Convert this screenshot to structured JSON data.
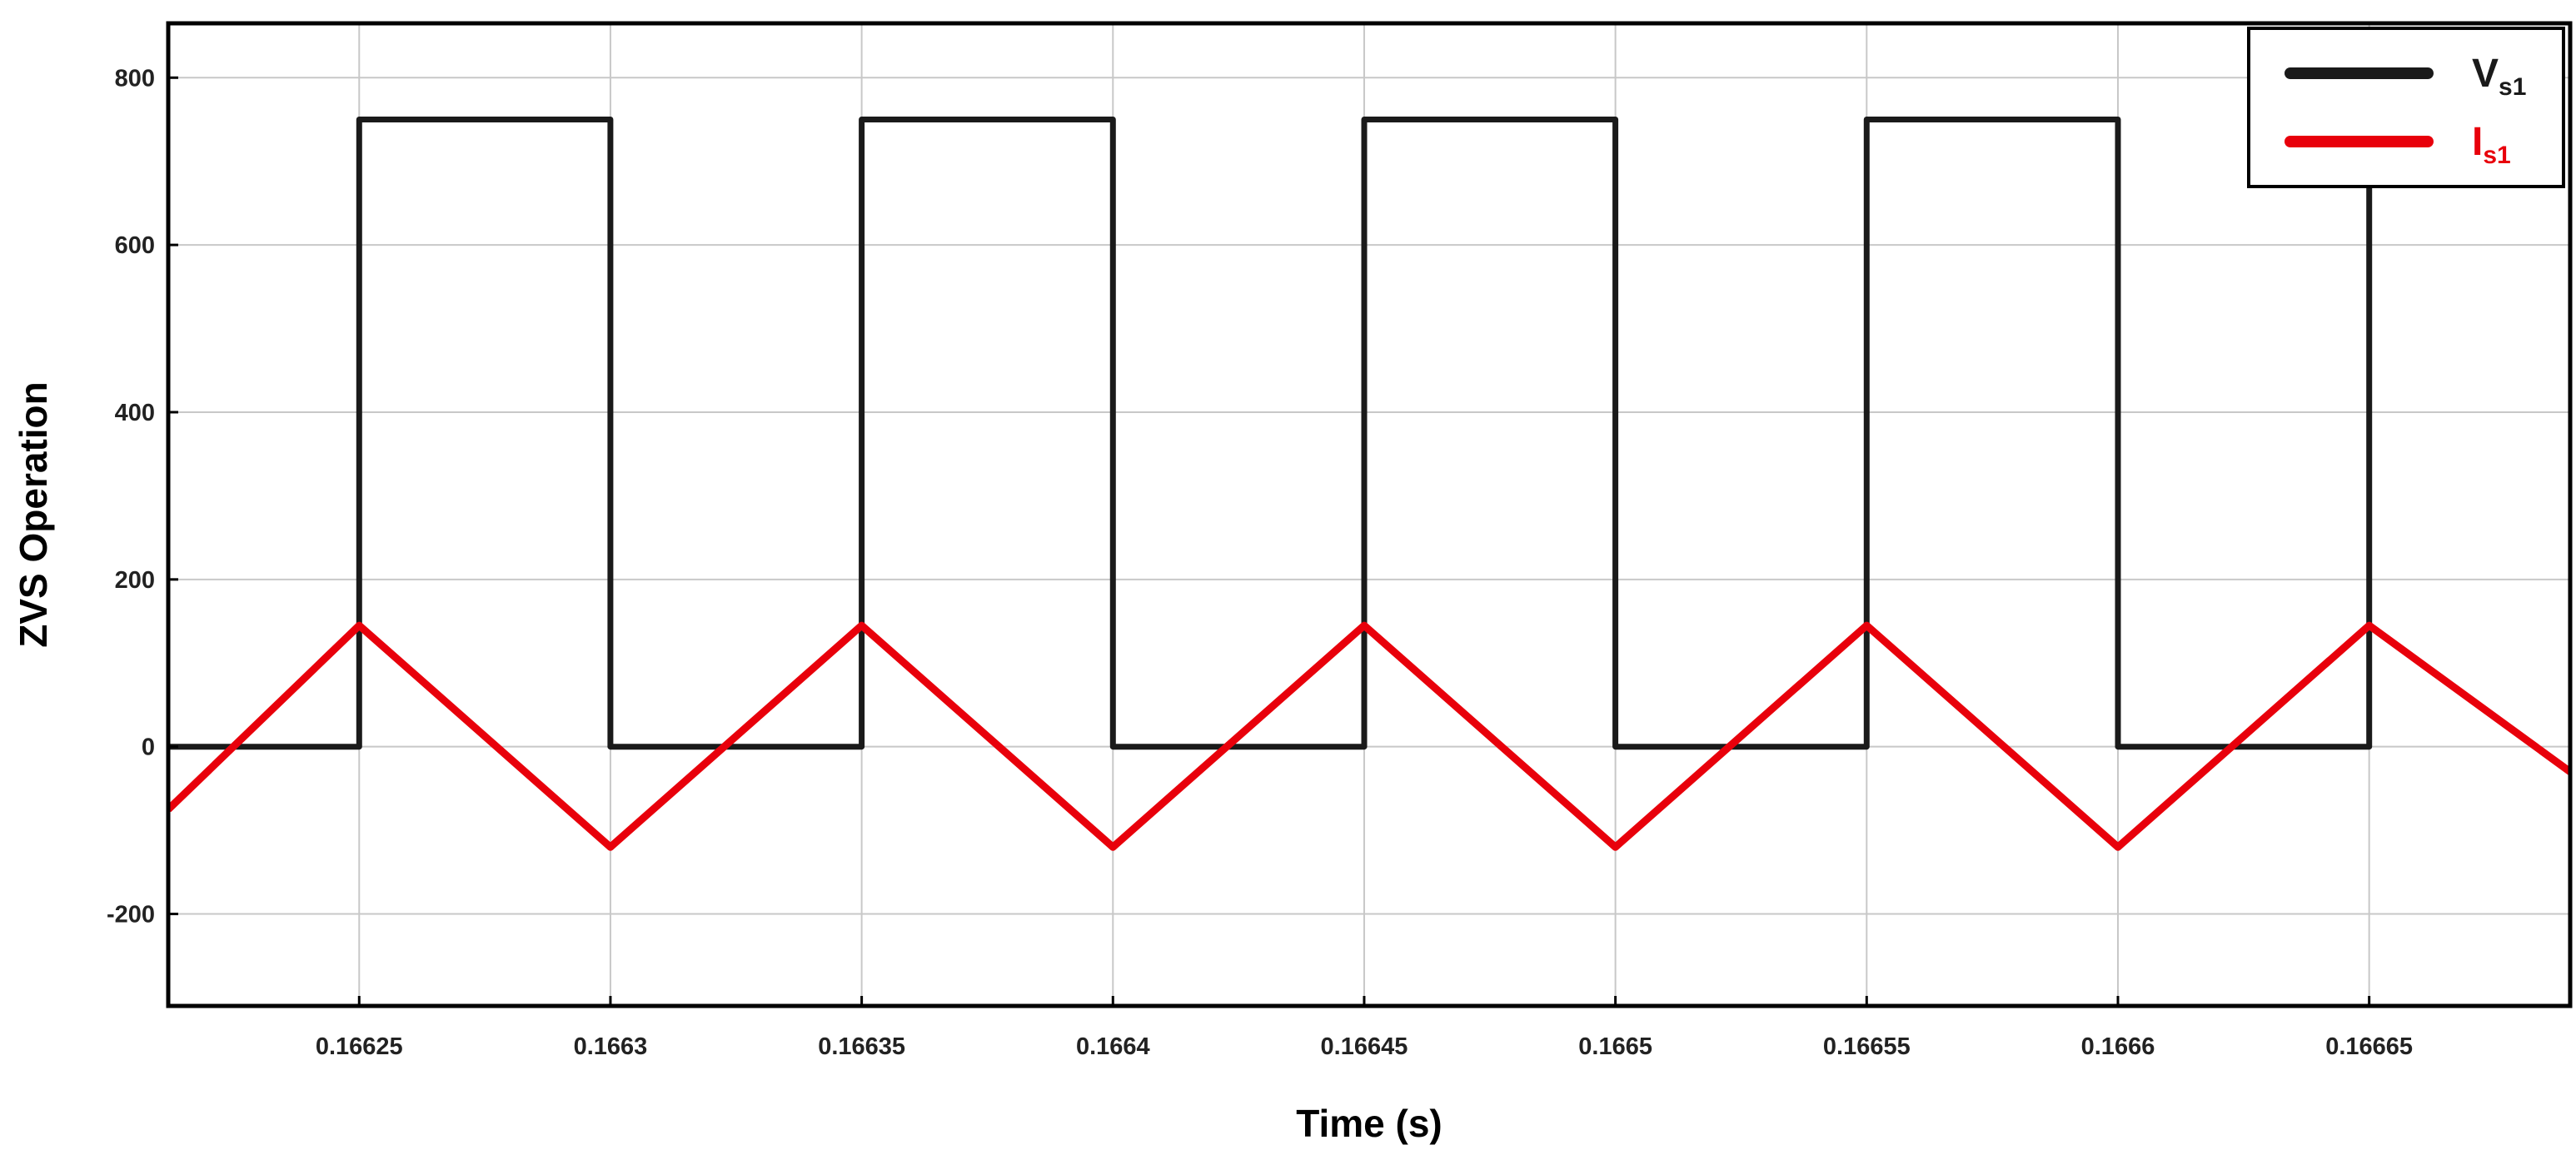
{
  "chart_data": {
    "type": "line",
    "title": "",
    "xlabel": "Time (s)",
    "ylabel": "ZVS Operation",
    "xlim": [
      0.166212,
      0.16669
    ],
    "ylim": [
      -310,
      865
    ],
    "x_ticks": [
      0.16625,
      0.1663,
      0.16635,
      0.1664,
      0.16645,
      0.1665,
      0.16655,
      0.1666,
      0.16665
    ],
    "x_tick_labels": [
      "0.16625",
      "0.1663",
      "0.16635",
      "0.1664",
      "0.16645",
      "0.1665",
      "0.16655",
      "0.1666",
      "0.16665"
    ],
    "y_ticks": [
      -200,
      0,
      200,
      400,
      600,
      800
    ],
    "y_tick_labels": [
      "-200",
      "0",
      "200",
      "400",
      "600",
      "800"
    ],
    "grid": true,
    "legend_position": "top-right",
    "series": [
      {
        "name": "V",
        "name_subscript": "s1",
        "color": "#1a1a1a",
        "x": [
          0.166212,
          0.16625,
          0.16625,
          0.1663,
          0.1663,
          0.16635,
          0.16635,
          0.1664,
          0.1664,
          0.16645,
          0.16645,
          0.1665,
          0.1665,
          0.16655,
          0.16655,
          0.1666,
          0.1666,
          0.16665,
          0.16665
        ],
        "y": [
          0,
          0,
          750,
          750,
          0,
          0,
          750,
          750,
          0,
          0,
          750,
          750,
          0,
          0,
          750,
          750,
          0,
          0,
          750
        ]
      },
      {
        "name": "I",
        "name_subscript": "s1",
        "color": "#e8000b",
        "x": [
          0.166212,
          0.16625,
          0.1663,
          0.16635,
          0.1664,
          0.16645,
          0.1665,
          0.16655,
          0.1666,
          0.16665,
          0.16669
        ],
        "y": [
          -75,
          145,
          -120,
          145,
          -120,
          145,
          -120,
          145,
          -120,
          145,
          -30
        ]
      }
    ]
  }
}
